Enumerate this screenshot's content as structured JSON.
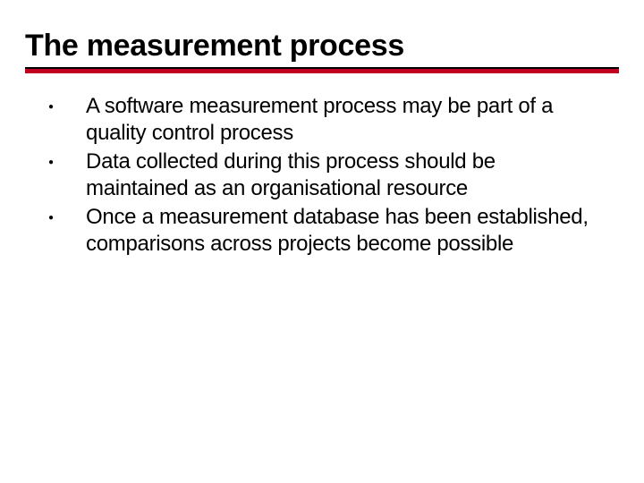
{
  "slide": {
    "title": "The measurement process",
    "title_fontsize": 34,
    "title_color": "#000000",
    "underline_thin_color": "#000000",
    "underline_thin_height": 2,
    "underline_thick_color": "#c00020",
    "underline_thick_height": 5,
    "background_color": "#ffffff",
    "body_fontsize": 24,
    "body_color": "#000000",
    "bullets": [
      "A software measurement process may be part of a quality control process",
      "Data collected during this process should be maintained as an organisational resource",
      "Once a measurement database has been established, comparisons across projects become possible"
    ],
    "bullet_marker": "●",
    "bullet_marker_color": "#000000"
  }
}
